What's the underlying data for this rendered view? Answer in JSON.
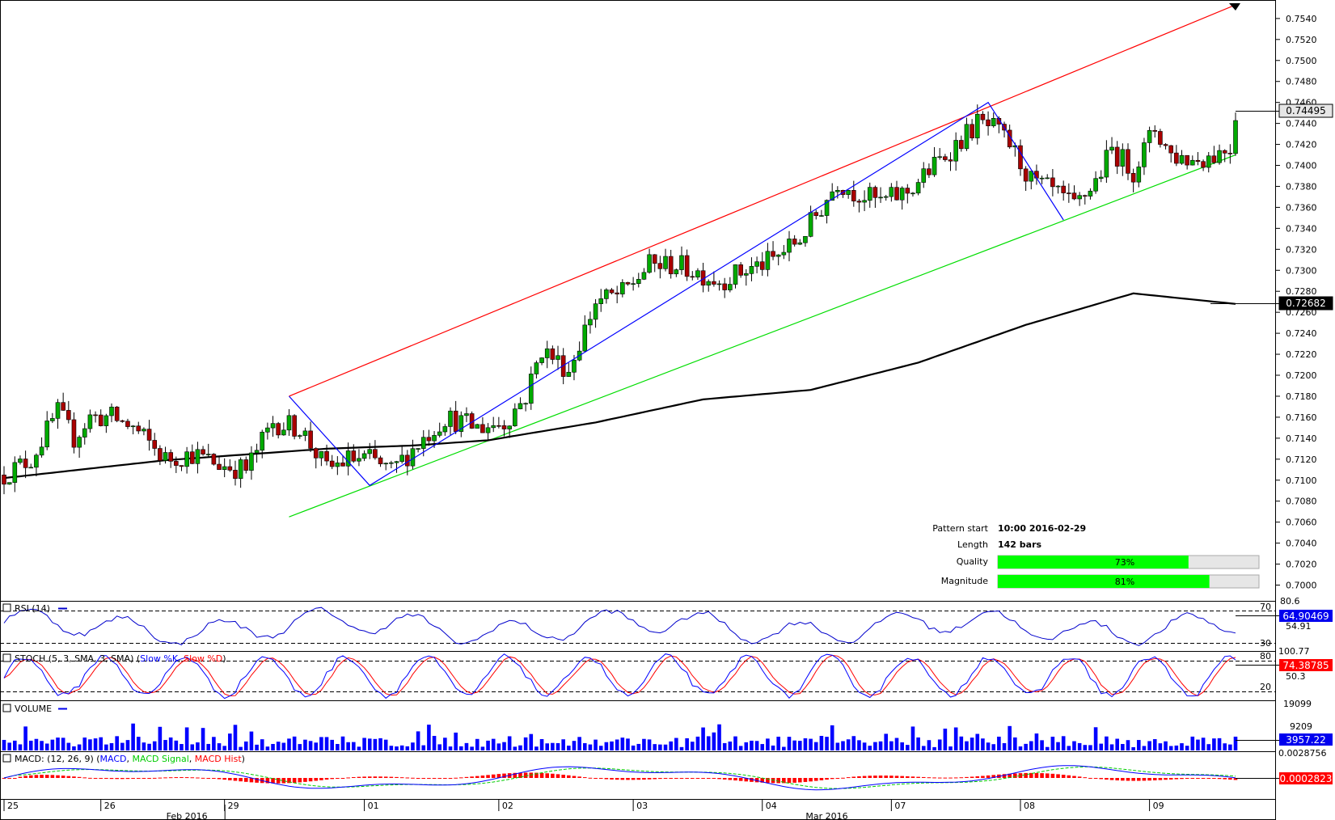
{
  "main": {
    "y_ticks": [
      "0.7540",
      "0.7520",
      "0.7500",
      "0.7480",
      "0.7460",
      "0.7440",
      "0.7420",
      "0.7400",
      "0.7380",
      "0.7360",
      "0.7340",
      "0.7320",
      "0.7300",
      "0.7280",
      "0.7260",
      "0.7240",
      "0.7220",
      "0.7200",
      "0.7180",
      "0.7160",
      "0.7140",
      "0.7120",
      "0.7100",
      "0.7080",
      "0.7060",
      "0.7040",
      "0.7020",
      "0.7000"
    ],
    "last_price_label": "0.74495",
    "sma_label": "0.72682"
  },
  "pattern_info": {
    "start_label": "Pattern start",
    "start_value": "10:00 2016-02-29",
    "length_label": "Length",
    "length_value": "142 bars",
    "quality_label": "Quality",
    "quality_value": "73%",
    "quality_fraction": 0.73,
    "magnitude_label": "Magnitude",
    "magnitude_value": "81%",
    "magnitude_fraction": 0.81
  },
  "rsi": {
    "title": "RSI (14)",
    "top_value": "80.6",
    "level_high": "70",
    "level_low": "30",
    "mid_value": "54.91",
    "current": "64.90469"
  },
  "stoch": {
    "title": "STOCH (5, 3, SMA, 3, SMA)",
    "k_label": "Slow %K",
    "d_label": "Slow %D",
    "top_value": "100.77",
    "level_high": "80",
    "mid_value": "50.3",
    "level_low": "20",
    "current": "74.38785"
  },
  "volume": {
    "title": "VOLUME",
    "top_value": "19099",
    "mid_value": "9209",
    "current": "3957.22"
  },
  "macd": {
    "title": "MACD: (12, 26, 9)",
    "macd_label": "MACD",
    "signal_label": "MACD Signal",
    "hist_label": "MACD Hist",
    "top_value": "0.0028756",
    "current": "0.0002823"
  },
  "x_axis": {
    "day_labels": [
      "25",
      "26",
      "29",
      "01",
      "02",
      "03",
      "04",
      "07",
      "08",
      "09"
    ],
    "month_labels": [
      "Feb 2016",
      "Mar 2016"
    ]
  },
  "colors": {
    "bull": "#00aa00",
    "bear": "#aa0000",
    "channel_upper": "#ff0000",
    "channel_lower": "#00dd00",
    "zigzag": "#0000ff",
    "sma": "#000000",
    "rsi": "#0000cc",
    "stoch_k": "#0000ff",
    "stoch_d": "#ff0000",
    "volume": "#0000ff",
    "macd": "#0000ff",
    "macd_signal": "#00cc00",
    "macd_hist": "#ff0000",
    "gauge_fill": "#00ff00"
  },
  "chart_data": {
    "type": "candlestick",
    "y_range": [
      0.6995,
      0.7553
    ],
    "bars": 142,
    "price_anchors": [
      [
        0,
        0.7105
      ],
      [
        5,
        0.712
      ],
      [
        10,
        0.7165
      ],
      [
        13,
        0.714
      ],
      [
        16,
        0.716
      ],
      [
        20,
        0.716
      ],
      [
        24,
        0.715
      ],
      [
        26,
        0.714
      ],
      [
        30,
        0.712
      ],
      [
        35,
        0.7125
      ],
      [
        40,
        0.7115
      ],
      [
        45,
        0.711
      ],
      [
        50,
        0.7155
      ],
      [
        55,
        0.715
      ],
      [
        60,
        0.711
      ],
      [
        64,
        0.712
      ],
      [
        68,
        0.712
      ],
      [
        72,
        0.7108
      ],
      [
        76,
        0.713
      ],
      [
        82,
        0.716
      ],
      [
        88,
        0.715
      ],
      [
        93,
        0.7155
      ],
      [
        97,
        0.718
      ],
      [
        100,
        0.7225
      ],
      [
        105,
        0.7205
      ],
      [
        110,
        0.727
      ],
      [
        115,
        0.7278
      ],
      [
        120,
        0.7305
      ],
      [
        125,
        0.7305
      ],
      [
        128,
        0.73
      ],
      [
        133,
        0.729
      ],
      [
        138,
        0.73
      ],
      [
        143,
        0.731
      ],
      [
        148,
        0.733
      ],
      [
        152,
        0.736
      ],
      [
        155,
        0.7385
      ],
      [
        158,
        0.7375
      ],
      [
        163,
        0.7365
      ],
      [
        168,
        0.7375
      ],
      [
        172,
        0.7395
      ],
      [
        175,
        0.741
      ],
      [
        178,
        0.7425
      ],
      [
        181,
        0.744
      ],
      [
        184,
        0.7435
      ],
      [
        187,
        0.742
      ],
      [
        191,
        0.7385
      ],
      [
        195,
        0.7375
      ],
      [
        199,
        0.736
      ],
      [
        203,
        0.7385
      ],
      [
        206,
        0.7415
      ],
      [
        210,
        0.7395
      ],
      [
        214,
        0.7435
      ],
      [
        217,
        0.741
      ],
      [
        221,
        0.7405
      ],
      [
        225,
        0.741
      ],
      [
        228,
        0.7418
      ],
      [
        229,
        0.7449
      ]
    ],
    "sma_200": [
      [
        0,
        0.7102
      ],
      [
        30,
        0.7119
      ],
      [
        60,
        0.713
      ],
      [
        76,
        0.7133
      ],
      [
        90,
        0.7138
      ],
      [
        110,
        0.7155
      ],
      [
        130,
        0.7177
      ],
      [
        150,
        0.7186
      ],
      [
        170,
        0.7212
      ],
      [
        190,
        0.7248
      ],
      [
        210,
        0.7278
      ],
      [
        229,
        0.7268
      ]
    ],
    "channel_upper": [
      [
        53,
        0.718
      ],
      [
        229,
        0.7553
      ]
    ],
    "channel_lower": [
      [
        53,
        0.7065
      ],
      [
        229,
        0.741
      ]
    ],
    "zigzag": [
      [
        53,
        0.718
      ],
      [
        68,
        0.7095
      ],
      [
        183,
        0.746
      ],
      [
        197,
        0.7348
      ]
    ],
    "day_starts": [
      0,
      18,
      41,
      67,
      92,
      117,
      141,
      165,
      189,
      213
    ],
    "bar_count_total": 230
  }
}
